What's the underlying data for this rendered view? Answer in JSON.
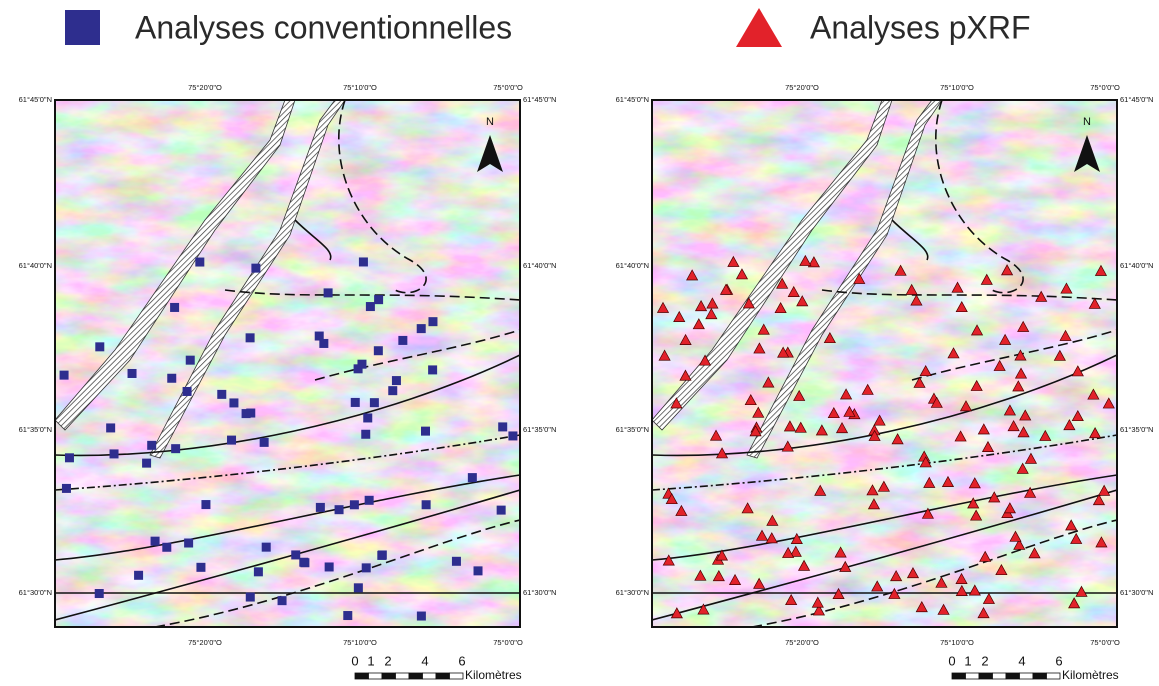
{
  "legend": {
    "conventional": "Analyses conventionnelles",
    "pxrf": "Analyses pXRF"
  },
  "map": {
    "latitudes": [
      "61°45'0\"N",
      "61°40'0\"N",
      "61°35'0\"N",
      "61°30'0\"N"
    ],
    "longitudes": [
      "75°20'0\"O",
      "75°10'0\"O",
      "75°0'0\"O"
    ],
    "north": "N",
    "scale": {
      "ticks": [
        "0",
        "1",
        "2",
        "4",
        "6"
      ],
      "unit": "Kilomètres"
    }
  }
}
